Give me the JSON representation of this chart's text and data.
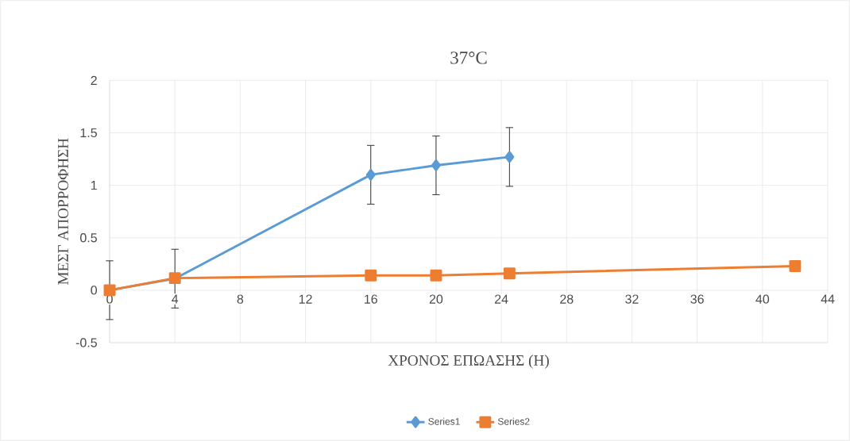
{
  "chart_data": {
    "type": "line",
    "title": "37°C",
    "xlabel": "ΧΡΟΝΟΣ ΕΠΩΑΣΗΣ (Η)",
    "ylabel": "ΜΕΣΓ ΑΠΟΡΡΟΦΗΣΗ",
    "xlim": [
      0,
      44
    ],
    "xticks": [
      0,
      4,
      8,
      12,
      16,
      20,
      24,
      28,
      32,
      36,
      40,
      44
    ],
    "ylim": [
      -0.5,
      2
    ],
    "yticks": [
      -0.5,
      0,
      0.5,
      1,
      1.5,
      2
    ],
    "grid": true,
    "legend": "bottom",
    "line_style": "solid",
    "series": [
      {
        "name": "Series1",
        "color": "#5b9bd5",
        "marker": "diamond",
        "x": [
          0,
          4,
          16,
          20,
          24.5
        ],
        "values": [
          0,
          0.11,
          1.1,
          1.19,
          1.27
        ],
        "errors": [
          0.28,
          0.28,
          0.28,
          0.28,
          0.28
        ]
      },
      {
        "name": "Series2",
        "color": "#ed7d31",
        "marker": "square",
        "x": [
          0,
          4,
          16,
          20,
          24.5,
          42
        ],
        "values": [
          0,
          0.115,
          0.14,
          0.14,
          0.16,
          0.23
        ]
      }
    ]
  }
}
